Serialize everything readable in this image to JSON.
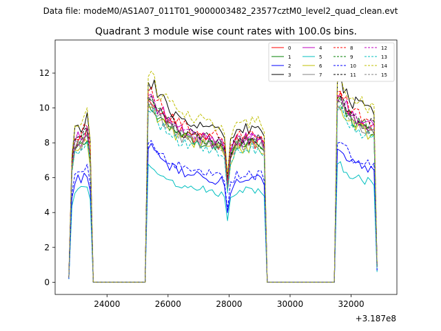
{
  "chart_data": {
    "type": "line",
    "suptitle": "Data file: modeM0/AS1A07_011T01_9000003482_23577cztM0_level2_quad_clean.evt",
    "title": "Quadrant 3 module wise count rates with 100.0s bins.",
    "xlabel": "",
    "ylabel": "",
    "x_offset_label": "+3.187e8",
    "xlim": [
      22300,
      33500
    ],
    "ylim": [
      -0.7,
      13.9
    ],
    "xticks": [
      24000,
      26000,
      28000,
      30000,
      32000
    ],
    "xtick_labels": [
      "24000",
      "26000",
      "28000",
      "30000",
      "32000"
    ],
    "yticks": [
      0,
      2,
      4,
      6,
      8,
      10,
      12
    ],
    "ytick_labels": [
      "0",
      "2",
      "4",
      "6",
      "8",
      "10",
      "12"
    ],
    "legend_position": "top-right",
    "segments": [
      {
        "start": 22750,
        "n": 9,
        "values": [
          0.3,
          6.9,
          8.2,
          8.5,
          8.5,
          8.7,
          9.0,
          7.5,
          0.0
        ]
      },
      {
        "start": 23550,
        "n": 18,
        "values": [
          0.0,
          0.0,
          0.0,
          0.0,
          0.0,
          0.0,
          0.0,
          0.0,
          0.0,
          0.0,
          0.0,
          0.0,
          0.0,
          0.0,
          0.0,
          0.0,
          0.0,
          0.0
        ]
      },
      {
        "start": 25350,
        "n": 26,
        "values": [
          11.5,
          10.9,
          10.7,
          10.3,
          10.1,
          9.9,
          9.7,
          9.5,
          9.4,
          9.2,
          9.1,
          9.0,
          8.9,
          8.8,
          8.8,
          8.7,
          8.7,
          8.6,
          8.6,
          8.5,
          8.5,
          8.4,
          8.4,
          8.3,
          8.3,
          8.3
        ]
      },
      {
        "start": 27950,
        "n": 13,
        "values": [
          6.0,
          7.6,
          8.1,
          8.4,
          8.5,
          8.4,
          8.5,
          8.4,
          8.6,
          8.3,
          8.6,
          8.4,
          8.4
        ]
      },
      {
        "start": 29250,
        "n": 23,
        "values": [
          0.0,
          0.0,
          0.0,
          0.0,
          0.0,
          0.0,
          0.0,
          0.0,
          0.0,
          0.0,
          0.0,
          0.0,
          0.0,
          0.0,
          0.0,
          0.0,
          0.0,
          0.0,
          0.0,
          0.0,
          0.0,
          0.0,
          0.0
        ]
      },
      {
        "start": 31550,
        "n": 14,
        "values": [
          11.5,
          11.0,
          10.6,
          10.3,
          10.0,
          9.8,
          9.7,
          9.6,
          9.5,
          9.4,
          9.3,
          9.3,
          9.2,
          1.0
        ]
      }
    ],
    "series": [
      {
        "name": "0",
        "color": "#ff0000",
        "dash": "solid",
        "scale": 0.96
      },
      {
        "name": "1",
        "color": "#008000",
        "dash": "solid",
        "scale": 0.94
      },
      {
        "name": "2",
        "color": "#0000ff",
        "dash": "solid",
        "scale": 0.7
      },
      {
        "name": "3",
        "color": "#000000",
        "dash": "solid",
        "scale": 1.05
      },
      {
        "name": "4",
        "color": "#bf00bf",
        "dash": "solid",
        "scale": 0.98
      },
      {
        "name": "5",
        "color": "#00bfbf",
        "dash": "solid",
        "scale": 0.62
      },
      {
        "name": "6",
        "color": "#bfbf00",
        "dash": "solid",
        "scale": 0.92
      },
      {
        "name": "7",
        "color": "#808080",
        "dash": "solid",
        "scale": 0.93
      },
      {
        "name": "8",
        "color": "#ff0000",
        "dash": "dashed",
        "scale": 1.0
      },
      {
        "name": "9",
        "color": "#008000",
        "dash": "dashed",
        "scale": 0.95
      },
      {
        "name": "10",
        "color": "#0000ff",
        "dash": "dashed",
        "scale": 0.73
      },
      {
        "name": "11",
        "color": "#000000",
        "dash": "dashed",
        "scale": 0.97
      },
      {
        "name": "12",
        "color": "#bf00bf",
        "dash": "dashed",
        "scale": 0.96
      },
      {
        "name": "13",
        "color": "#00bfbf",
        "dash": "dashed",
        "scale": 0.9
      },
      {
        "name": "14",
        "color": "#bfbf00",
        "dash": "dashed",
        "scale": 1.08
      },
      {
        "name": "15",
        "color": "#808080",
        "dash": "dashed",
        "scale": 0.95
      }
    ]
  }
}
